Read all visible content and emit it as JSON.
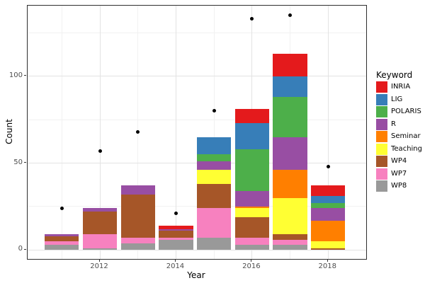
{
  "figure": {
    "xlabel": "Year",
    "ylabel": "Count",
    "legend_title": "Keyword"
  },
  "chart_data": {
    "type": "bar",
    "stacked": true,
    "title": "",
    "xlabel": "Year",
    "ylabel": "Count",
    "legend_title": "Keyword",
    "legend_position": "right",
    "grid": true,
    "categories": [
      2011,
      2012,
      2013,
      2014,
      2015,
      2016,
      2017,
      2018
    ],
    "series": [
      {
        "name": "WP8",
        "color": "#999999",
        "values": [
          3,
          1,
          4,
          6,
          7,
          3,
          3,
          0
        ]
      },
      {
        "name": "WP7",
        "color": "#f781bf",
        "values": [
          2,
          8,
          3,
          1,
          17,
          4,
          3,
          0
        ]
      },
      {
        "name": "WP4",
        "color": "#a65628",
        "values": [
          3,
          13,
          25,
          4,
          14,
          12,
          3,
          1
        ]
      },
      {
        "name": "Teaching",
        "color": "#ffff33",
        "values": [
          0,
          0,
          0,
          0,
          8,
          5,
          21,
          4
        ]
      },
      {
        "name": "Seminar",
        "color": "#ff7f00",
        "values": [
          0,
          0,
          0,
          0,
          0,
          1,
          16,
          12
        ]
      },
      {
        "name": "R",
        "color": "#984ea3",
        "values": [
          1,
          2,
          5,
          1,
          5,
          9,
          19,
          7
        ]
      },
      {
        "name": "POLARIS",
        "color": "#4daf4a",
        "values": [
          0,
          0,
          0,
          0,
          4,
          24,
          23,
          3
        ]
      },
      {
        "name": "LIG",
        "color": "#377eb8",
        "values": [
          0,
          0,
          0,
          0,
          10,
          15,
          12,
          4
        ]
      },
      {
        "name": "INRIA",
        "color": "#e41a1c",
        "values": [
          0,
          0,
          0,
          2,
          0,
          8,
          13,
          6
        ]
      }
    ],
    "bar_totals": [
      9,
      24,
      37,
      14,
      65,
      81,
      113,
      37
    ],
    "overlay_points": {
      "type": "scatter",
      "color": "#000000",
      "values": [
        24,
        57,
        68,
        21,
        80,
        133,
        135,
        48
      ]
    },
    "legend_order_top_to_bottom": [
      "INRIA",
      "LIG",
      "POLARIS",
      "R",
      "Seminar",
      "Teaching",
      "WP4",
      "WP7",
      "WP8"
    ],
    "x_major_ticks": [
      2012,
      2014,
      2016,
      2018
    ],
    "x_minor_gridlines": [
      2011,
      2013,
      2015,
      2017
    ],
    "y_major_ticks": [
      0,
      50,
      100
    ],
    "y_minor_gridlines": [
      25,
      75,
      125
    ],
    "xlim": [
      2010.1,
      2019.0
    ],
    "ylim": [
      -5.1,
      140.5
    ],
    "bar_width_years": 0.9,
    "theme": {
      "panel_bg": "#ffffff",
      "grid_major": "#e3e3e3",
      "grid_minor": "#f1f1f1",
      "panel_border": "#2f2f2f",
      "tick_color": "#333333",
      "tick_label_color": "#4d4d4d"
    }
  }
}
